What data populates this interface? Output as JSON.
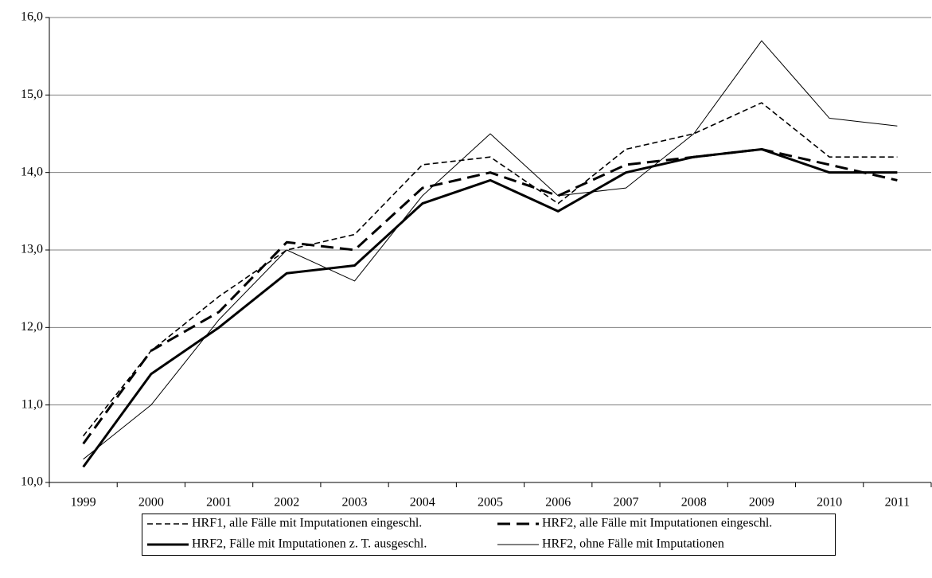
{
  "chart_data": {
    "type": "line",
    "categories": [
      "1999",
      "2000",
      "2001",
      "2002",
      "2003",
      "2004",
      "2005",
      "2006",
      "2007",
      "2008",
      "2009",
      "2010",
      "2011"
    ],
    "series": [
      {
        "name": "HRF1, alle Fälle mit Imputationen eingeschl.",
        "color": "#000000",
        "values": [
          10.6,
          11.7,
          12.4,
          13.0,
          13.2,
          14.1,
          14.2,
          13.6,
          14.3,
          14.5,
          14.9,
          14.2,
          14.2
        ]
      },
      {
        "name": "HRF2, alle Fälle mit Imputationen eingeschl.",
        "color": "#000000",
        "values": [
          10.5,
          11.7,
          12.2,
          13.1,
          13.0,
          13.8,
          14.0,
          13.7,
          14.1,
          14.2,
          14.3,
          14.1,
          13.9
        ]
      },
      {
        "name": "HRF2, Fälle mit Imputationen z. T. ausgeschl.",
        "color": "#000000",
        "values": [
          10.2,
          11.4,
          12.0,
          12.7,
          12.8,
          13.6,
          13.9,
          13.5,
          14.0,
          14.2,
          14.3,
          14.0,
          14.0
        ]
      },
      {
        "name": "HRF2, ohne Fälle mit Imputationen",
        "color": "#000000",
        "values": [
          10.3,
          11.0,
          12.1,
          13.0,
          12.6,
          13.7,
          14.5,
          13.7,
          13.8,
          14.5,
          15.7,
          14.7,
          14.6
        ]
      }
    ],
    "ylim": [
      10,
      16
    ],
    "yticks": [
      {
        "value": 10,
        "label": "10,0"
      },
      {
        "value": 11,
        "label": "11,0"
      },
      {
        "value": 12,
        "label": "12,0"
      },
      {
        "value": 13,
        "label": "13,0"
      },
      {
        "value": 14,
        "label": "14,0"
      },
      {
        "value": 15,
        "label": "15,0"
      },
      {
        "value": 16,
        "label": "16,0"
      }
    ],
    "grid": true,
    "legend": "bottom"
  }
}
